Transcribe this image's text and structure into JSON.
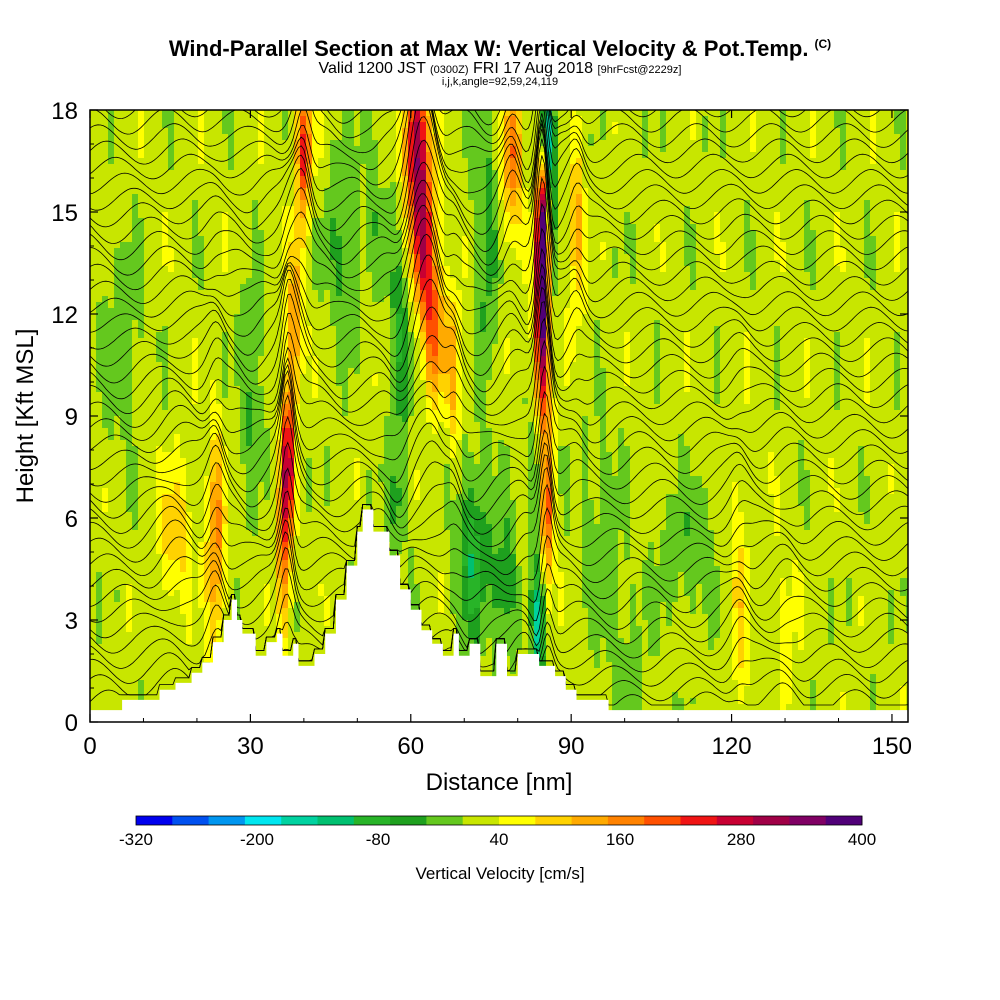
{
  "header": {
    "title": "Wind-Parallel Section at Max W: Vertical Velocity & Pot.Temp.",
    "copyright": "(C)",
    "valid_prefix": "Valid 1200 JST",
    "valid_utc": "(0300Z)",
    "valid_date": "FRI 17 Aug 2018",
    "forecast": "[9hrFcst@2229z]",
    "indices": "i,j,k,angle=92,59,24,119"
  },
  "chart_data": {
    "type": "heatmap",
    "xlabel": "Distance [nm]",
    "ylabel": "Height [Kft MSL]",
    "xlim": [
      0,
      153
    ],
    "ylim": [
      0,
      18
    ],
    "x_ticks": [
      0,
      30,
      60,
      90,
      120,
      150
    ],
    "x_tick_labels": [
      "0",
      "30",
      "60",
      "90",
      "120",
      "150"
    ],
    "y_ticks": [
      0,
      3,
      6,
      9,
      12,
      15,
      18
    ],
    "y_tick_labels": [
      "0",
      "3",
      "6",
      "9",
      "12",
      "15",
      "18"
    ],
    "colorbar": {
      "label": "Vertical Velocity [cm/s]",
      "min": -320,
      "max": 400,
      "tick_values": [
        -320,
        -200,
        -80,
        40,
        160,
        280,
        400
      ],
      "tick_labels": [
        "-320",
        "-200",
        "-80",
        "40",
        "160",
        "280",
        "400"
      ],
      "colors": [
        "#0000ee",
        "#0050f0",
        "#0096f0",
        "#00e6f0",
        "#00d2a0",
        "#00c070",
        "#28b428",
        "#1ea01e",
        "#64c81e",
        "#c8e600",
        "#ffff00",
        "#ffd200",
        "#ffaa00",
        "#ff8200",
        "#ff5000",
        "#f01414",
        "#c80032",
        "#a00046",
        "#800064",
        "#500078"
      ]
    },
    "background_value": 20,
    "terrain_nm_kft": [
      [
        0,
        0.35
      ],
      [
        6,
        0.35
      ],
      [
        6,
        0.65
      ],
      [
        13,
        0.65
      ],
      [
        13,
        0.95
      ],
      [
        16,
        0.95
      ],
      [
        16,
        1.15
      ],
      [
        19,
        1.15
      ],
      [
        19,
        1.45
      ],
      [
        21,
        1.45
      ],
      [
        21,
        1.75
      ],
      [
        23,
        1.75
      ],
      [
        23,
        2.35
      ],
      [
        25,
        2.35
      ],
      [
        25,
        3.0
      ],
      [
        26.5,
        3.0
      ],
      [
        26.5,
        3.6
      ],
      [
        27.5,
        3.6
      ],
      [
        27.5,
        3.0
      ],
      [
        28.5,
        3.0
      ],
      [
        28.5,
        2.6
      ],
      [
        31,
        2.6
      ],
      [
        31,
        1.95
      ],
      [
        33,
        1.95
      ],
      [
        33,
        2.35
      ],
      [
        35,
        2.35
      ],
      [
        35,
        2.6
      ],
      [
        36,
        2.6
      ],
      [
        36,
        1.95
      ],
      [
        38,
        1.95
      ],
      [
        38,
        2.3
      ],
      [
        39,
        2.3
      ],
      [
        39,
        1.65
      ],
      [
        42,
        1.65
      ],
      [
        42,
        2.0
      ],
      [
        44,
        2.0
      ],
      [
        44,
        2.6
      ],
      [
        46,
        2.6
      ],
      [
        46,
        3.6
      ],
      [
        48,
        3.6
      ],
      [
        48,
        4.6
      ],
      [
        50,
        4.6
      ],
      [
        50,
        5.6
      ],
      [
        51,
        5.6
      ],
      [
        51,
        6.25
      ],
      [
        53,
        6.25
      ],
      [
        53,
        5.6
      ],
      [
        56,
        5.6
      ],
      [
        56,
        4.9
      ],
      [
        58,
        4.9
      ],
      [
        58,
        3.9
      ],
      [
        60,
        3.9
      ],
      [
        60,
        3.3
      ],
      [
        62,
        3.3
      ],
      [
        62,
        2.7
      ],
      [
        64,
        2.7
      ],
      [
        64,
        2.3
      ],
      [
        66,
        2.3
      ],
      [
        66,
        1.95
      ],
      [
        68,
        1.95
      ],
      [
        68,
        2.6
      ],
      [
        69,
        2.6
      ],
      [
        69,
        1.95
      ],
      [
        71,
        1.95
      ],
      [
        71,
        2.3
      ],
      [
        73,
        2.3
      ],
      [
        73,
        1.35
      ],
      [
        76,
        1.35
      ],
      [
        76,
        2.3
      ],
      [
        78,
        2.3
      ],
      [
        78,
        1.35
      ],
      [
        80,
        1.35
      ],
      [
        80,
        2.0
      ],
      [
        84,
        2.0
      ],
      [
        84,
        1.65
      ],
      [
        87,
        1.65
      ],
      [
        87,
        1.35
      ],
      [
        89,
        1.35
      ],
      [
        89,
        0.95
      ],
      [
        91,
        0.95
      ],
      [
        91,
        0.65
      ],
      [
        97,
        0.65
      ],
      [
        97,
        0.35
      ],
      [
        153,
        0.35
      ]
    ],
    "updrafts": [
      {
        "x": 37,
        "y": 7.6,
        "sx": 0.8,
        "sy": 1.7,
        "amp": 290
      },
      {
        "x": 36,
        "y": 4.5,
        "sx": 1.0,
        "sy": 1.8,
        "amp": 120
      },
      {
        "x": 23.5,
        "y": 5.3,
        "sx": 1.1,
        "sy": 2.2,
        "amp": 150
      },
      {
        "x": 16,
        "y": 5.5,
        "sx": 2.2,
        "sy": 1.4,
        "amp": 80
      },
      {
        "x": 40,
        "y": 16.8,
        "sx": 1.0,
        "sy": 1.3,
        "amp": 220
      },
      {
        "x": 38.5,
        "y": 12.0,
        "sx": 1.0,
        "sy": 1.7,
        "amp": 130
      },
      {
        "x": 61,
        "y": 17.0,
        "sx": 1.6,
        "sy": 1.7,
        "amp": 280
      },
      {
        "x": 62.5,
        "y": 14.0,
        "sx": 1.5,
        "sy": 1.6,
        "amp": 230
      },
      {
        "x": 64.5,
        "y": 11.5,
        "sx": 1.3,
        "sy": 1.4,
        "amp": 160
      },
      {
        "x": 68,
        "y": 10.5,
        "sx": 1.0,
        "sy": 1.6,
        "amp": 110
      },
      {
        "x": 84.5,
        "y": 12.0,
        "sx": 0.9,
        "sy": 2.4,
        "amp": 380
      },
      {
        "x": 85,
        "y": 14.8,
        "sx": 0.9,
        "sy": 1.3,
        "amp": 260
      },
      {
        "x": 85.5,
        "y": 6.2,
        "sx": 0.8,
        "sy": 1.6,
        "amp": 200
      },
      {
        "x": 79,
        "y": 16.6,
        "sx": 1.2,
        "sy": 1.6,
        "amp": 160
      },
      {
        "x": 91,
        "y": 14.5,
        "sx": 1.0,
        "sy": 1.8,
        "amp": 110
      },
      {
        "x": 121.5,
        "y": 3.5,
        "sx": 1.2,
        "sy": 2.4,
        "amp": 70
      },
      {
        "x": 130,
        "y": 3.0,
        "sx": 1.5,
        "sy": 1.5,
        "amp": 45
      }
    ],
    "downdrafts": [
      {
        "x": 85.8,
        "y": 16.3,
        "sx": 0.9,
        "sy": 2.0,
        "amp": -230
      },
      {
        "x": 84,
        "y": 2.8,
        "sx": 0.8,
        "sy": 1.3,
        "amp": -180
      },
      {
        "x": 71.5,
        "y": 5.0,
        "sx": 2.0,
        "sy": 1.8,
        "amp": -110
      },
      {
        "x": 77.5,
        "y": 4.0,
        "sx": 1.7,
        "sy": 1.4,
        "amp": -90
      },
      {
        "x": 83.5,
        "y": 7.5,
        "sx": 1.0,
        "sy": 1.5,
        "amp": -90
      },
      {
        "x": 58,
        "y": 11.5,
        "sx": 1.5,
        "sy": 2.5,
        "amp": -80
      },
      {
        "x": 57.5,
        "y": 6.5,
        "sx": 1.3,
        "sy": 1.0,
        "amp": -60
      },
      {
        "x": 74,
        "y": 14.0,
        "sx": 1.5,
        "sy": 3.0,
        "amp": -70
      },
      {
        "x": 47,
        "y": 14.0,
        "sx": 2.0,
        "sy": 2.0,
        "amp": -60
      },
      {
        "x": 6,
        "y": 11.0,
        "sx": 3.0,
        "sy": 2.0,
        "amp": -40
      },
      {
        "x": 112,
        "y": 5.0,
        "sx": 4.0,
        "sy": 1.5,
        "amp": -40
      },
      {
        "x": 95,
        "y": 6.0,
        "sx": 3.0,
        "sy": 2.0,
        "amp": -35
      },
      {
        "x": 100,
        "y": 2.5,
        "sx": 3.0,
        "sy": 1.5,
        "amp": -30
      },
      {
        "x": 30,
        "y": 10.0,
        "sx": 1.5,
        "sy": 2.0,
        "amp": -60
      },
      {
        "x": 53,
        "y": 16.0,
        "sx": 1.5,
        "sy": 2.0,
        "amp": -40
      }
    ],
    "contour_count": 40,
    "contour_spacing_kft": 0.45
  }
}
